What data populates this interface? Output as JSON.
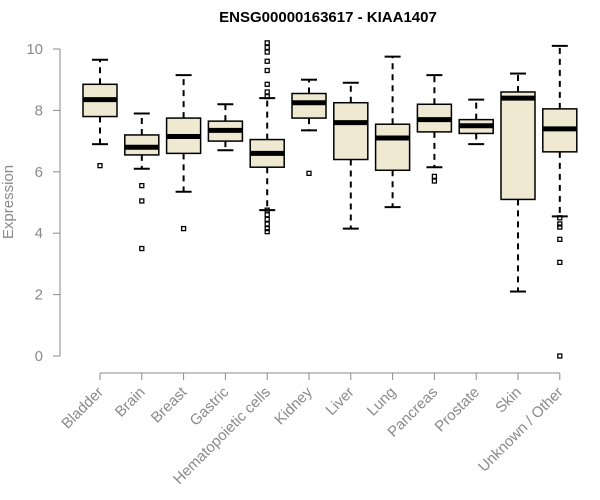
{
  "chart_data": {
    "type": "boxplot",
    "title": "ENSG00000163617 - KIAA1407",
    "xlabel": "",
    "ylabel": "Expression",
    "ylim": [
      0,
      10
    ],
    "yticks": [
      0,
      2,
      4,
      6,
      8,
      10
    ],
    "box_color": "#efe9d2",
    "categories": [
      "Bladder",
      "Brain",
      "Breast",
      "Gastric",
      "Hematopoietic cells",
      "Kidney",
      "Liver",
      "Lung",
      "Pancreas",
      "Prostate",
      "Skin",
      "Unknown / Other"
    ],
    "series": [
      {
        "name": "Bladder",
        "whisker_low": 6.9,
        "q1": 7.8,
        "median": 8.35,
        "q3": 8.85,
        "whisker_high": 9.65,
        "outliers": [
          6.2
        ]
      },
      {
        "name": "Brain",
        "whisker_low": 6.1,
        "q1": 6.55,
        "median": 6.8,
        "q3": 7.2,
        "whisker_high": 7.9,
        "outliers": [
          5.55,
          5.05,
          3.5
        ]
      },
      {
        "name": "Breast",
        "whisker_low": 5.35,
        "q1": 6.6,
        "median": 7.15,
        "q3": 7.75,
        "whisker_high": 9.15,
        "outliers": [
          4.15
        ]
      },
      {
        "name": "Gastric",
        "whisker_low": 6.7,
        "q1": 7.0,
        "median": 7.35,
        "q3": 7.65,
        "whisker_high": 8.2,
        "outliers": []
      },
      {
        "name": "Hematopoietic cells",
        "whisker_low": 4.75,
        "q1": 6.15,
        "median": 6.6,
        "q3": 7.05,
        "whisker_high": 8.4,
        "outliers": [
          10.2,
          10.05,
          9.9,
          9.6,
          9.3,
          8.85,
          8.6,
          8.45,
          4.75,
          4.6,
          4.45,
          4.3,
          4.15,
          4.05
        ]
      },
      {
        "name": "Kidney",
        "whisker_low": 7.35,
        "q1": 7.75,
        "median": 8.25,
        "q3": 8.55,
        "whisker_high": 9.0,
        "outliers": [
          5.95
        ]
      },
      {
        "name": "Liver",
        "whisker_low": 4.15,
        "q1": 6.4,
        "median": 7.6,
        "q3": 8.25,
        "whisker_high": 8.9,
        "outliers": []
      },
      {
        "name": "Lung",
        "whisker_low": 4.85,
        "q1": 6.05,
        "median": 7.1,
        "q3": 7.55,
        "whisker_high": 9.75,
        "outliers": []
      },
      {
        "name": "Pancreas",
        "whisker_low": 6.15,
        "q1": 7.3,
        "median": 7.7,
        "q3": 8.2,
        "whisker_high": 9.15,
        "outliers": [
          5.85,
          5.7
        ]
      },
      {
        "name": "Prostate",
        "whisker_low": 6.9,
        "q1": 7.25,
        "median": 7.5,
        "q3": 7.7,
        "whisker_high": 8.35,
        "outliers": []
      },
      {
        "name": "Skin",
        "whisker_low": 2.1,
        "q1": 5.1,
        "median": 8.4,
        "q3": 8.6,
        "whisker_high": 9.2,
        "outliers": []
      },
      {
        "name": "Unknown / Other",
        "whisker_low": 4.55,
        "q1": 6.65,
        "median": 7.4,
        "q3": 8.05,
        "whisker_high": 10.1,
        "outliers": [
          4.5,
          4.3,
          4.2,
          3.8,
          3.05,
          0.0
        ]
      }
    ]
  }
}
